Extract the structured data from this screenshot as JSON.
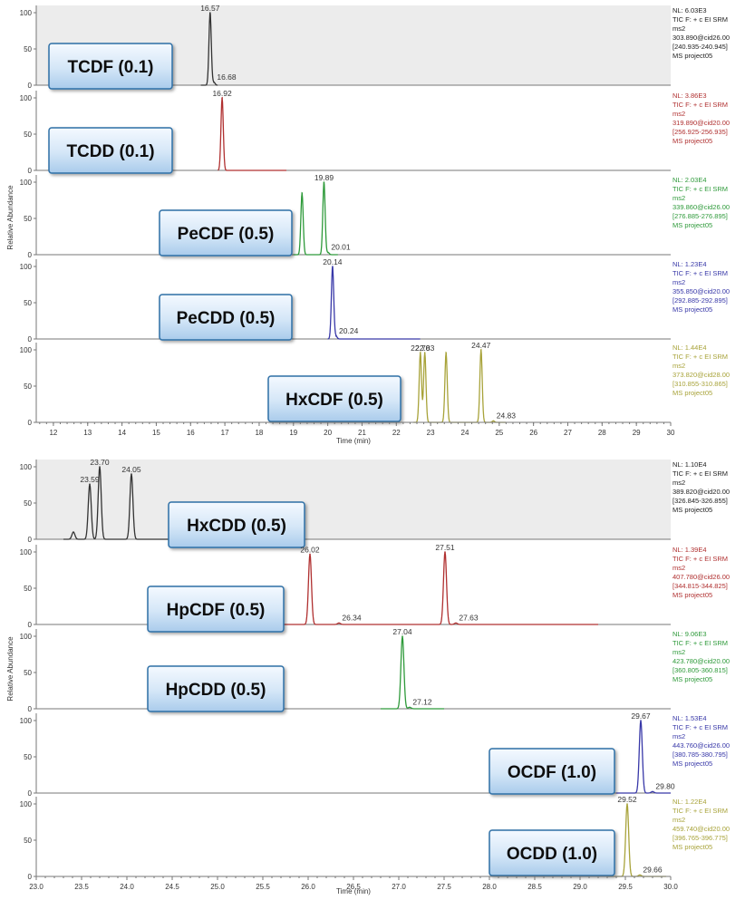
{
  "chart_data": [
    {
      "type": "line",
      "ylabel": "Relative Abundance",
      "xlabel": "Time (min)",
      "xlim": [
        11.5,
        30
      ],
      "x_ticks": [
        "12",
        "13",
        "14",
        "15",
        "16",
        "17",
        "18",
        "19",
        "20",
        "21",
        "22",
        "23",
        "24",
        "25",
        "26",
        "27",
        "28",
        "29",
        "30"
      ],
      "panels": [
        {
          "name": "TCDF (0.1)",
          "color": "#333333",
          "shaded": true,
          "y_ticks": [
            "0",
            "50",
            "100"
          ],
          "baseline": [
            16.3,
            16.8
          ],
          "info": [
            "NL: 6.03E3",
            "TIC F: + c EI SRM",
            "ms2",
            "303.890@cid26.00",
            "[240.935-240.945]",
            "MS project05"
          ],
          "peaks": [
            {
              "rt": 16.57,
              "height": 100,
              "label": "16.57"
            },
            {
              "rt": 16.68,
              "height": 4,
              "label": "16.68"
            }
          ]
        },
        {
          "name": "TCDD (0.1)",
          "color": "#b03030",
          "shaded": false,
          "y_ticks": [
            "0",
            "50",
            "100"
          ],
          "baseline": [
            16.8,
            18.8
          ],
          "info": [
            "NL: 3.86E3",
            "TIC F: + c EI SRM",
            "ms2",
            "319.890@cid20.00",
            "[256.925-256.935]",
            "MS project05"
          ],
          "peaks": [
            {
              "rt": 16.92,
              "height": 100,
              "label": "16.92"
            }
          ]
        },
        {
          "name": "PeCDF (0.5)",
          "color": "#2e9a3a",
          "shaded": false,
          "y_ticks": [
            "0",
            "50",
            "100"
          ],
          "baseline": [
            19.0,
            20.3
          ],
          "info": [
            "NL: 2.03E4",
            "TIC F: + c EI SRM",
            "ms2",
            "339.860@cid26.00",
            "[276.885-276.895]",
            "MS project05"
          ],
          "peaks": [
            {
              "rt": 19.25,
              "height": 85,
              "label": ""
            },
            {
              "rt": 19.89,
              "height": 100,
              "label": "19.89"
            },
            {
              "rt": 20.01,
              "height": 3,
              "label": "20.01"
            }
          ]
        },
        {
          "name": "PeCDD (0.5)",
          "color": "#3838a8",
          "shaded": false,
          "y_ticks": [
            "0",
            "50",
            "100"
          ],
          "baseline": [
            20.0,
            22.7
          ],
          "info": [
            "NL: 1.23E4",
            "TIC F: + c EI SRM",
            "ms2",
            "355.850@cid20.00",
            "[292.885-292.895]",
            "MS project05"
          ],
          "peaks": [
            {
              "rt": 20.14,
              "height": 100,
              "label": "20.14"
            },
            {
              "rt": 20.24,
              "height": 4,
              "label": "20.24"
            }
          ]
        },
        {
          "name": "HxCDF (0.5)",
          "color": "#a8a33a",
          "shaded": false,
          "y_ticks": [
            "0",
            "50",
            "100"
          ],
          "baseline": [
            22.5,
            25.2
          ],
          "info": [
            "NL: 1.44E4",
            "TIC F: + c EI SRM",
            "ms2",
            "373.820@cid28.00",
            "[310.855-310.865]",
            "MS project05"
          ],
          "peaks": [
            {
              "rt": 22.7,
              "height": 96,
              "label": "22.70"
            },
            {
              "rt": 22.83,
              "height": 96,
              "label": "22.83"
            },
            {
              "rt": 23.45,
              "height": 96,
              "label": ""
            },
            {
              "rt": 24.47,
              "height": 100,
              "label": "24.47"
            },
            {
              "rt": 24.83,
              "height": 2,
              "label": "24.83"
            }
          ]
        }
      ]
    },
    {
      "type": "line",
      "ylabel": "Relative Abundance",
      "xlabel": "Time (min)",
      "xlim": [
        23,
        30
      ],
      "x_ticks": [
        "23.0",
        "23.5",
        "24.0",
        "24.5",
        "25.0",
        "25.5",
        "26.0",
        "26.5",
        "27.0",
        "27.5",
        "28.0",
        "28.5",
        "29.0",
        "29.5",
        "30.0"
      ],
      "panels": [
        {
          "name": "HxCDD (0.5)",
          "color": "#333333",
          "shaded": true,
          "y_ticks": [
            "0",
            "50",
            "100"
          ],
          "baseline": [
            23.3,
            24.6
          ],
          "info": [
            "NL: 1.10E4",
            "TIC F: + c EI SRM",
            "ms2",
            "389.820@cid20.00",
            "[326.845-326.855]",
            "MS project05"
          ],
          "peaks": [
            {
              "rt": 23.41,
              "height": 10,
              "label": ""
            },
            {
              "rt": 23.59,
              "height": 76,
              "label": "23.59"
            },
            {
              "rt": 23.7,
              "height": 100,
              "label": "23.70"
            },
            {
              "rt": 24.05,
              "height": 90,
              "label": "24.05"
            }
          ]
        },
        {
          "name": "HpCDF (0.5)",
          "color": "#b03030",
          "shaded": false,
          "y_ticks": [
            "0",
            "50",
            "100"
          ],
          "baseline": [
            25.7,
            29.2
          ],
          "info": [
            "NL: 1.39E4",
            "TIC F: + c EI SRM",
            "ms2",
            "407.780@cid26.00",
            "[344.815-344.825]",
            "MS project05"
          ],
          "peaks": [
            {
              "rt": 26.02,
              "height": 97,
              "label": "26.02"
            },
            {
              "rt": 26.34,
              "height": 2,
              "label": "26.34"
            },
            {
              "rt": 27.51,
              "height": 100,
              "label": "27.51"
            },
            {
              "rt": 27.63,
              "height": 2,
              "label": "27.63"
            }
          ]
        },
        {
          "name": "HpCDD (0.5)",
          "color": "#2e9a3a",
          "shaded": false,
          "y_ticks": [
            "0",
            "50",
            "100"
          ],
          "baseline": [
            26.8,
            27.5
          ],
          "info": [
            "NL: 9.06E3",
            "TIC F: + c EI SRM",
            "ms2",
            "423.780@cid20.00",
            "[360.805-360.815]",
            "MS project05"
          ],
          "peaks": [
            {
              "rt": 27.04,
              "height": 100,
              "label": "27.04"
            },
            {
              "rt": 27.12,
              "height": 2,
              "label": "27.12"
            }
          ]
        },
        {
          "name": "OCDF (1.0)",
          "color": "#3838a8",
          "shaded": false,
          "y_ticks": [
            "0",
            "50",
            "100"
          ],
          "baseline": [
            29.4,
            30.0
          ],
          "info": [
            "NL: 1.53E4",
            "TIC F: + c EI SRM",
            "ms2",
            "443.760@cid26.00",
            "[380.785-380.795]",
            "MS project05"
          ],
          "peaks": [
            {
              "rt": 29.67,
              "height": 100,
              "label": "29.67"
            },
            {
              "rt": 29.8,
              "height": 2,
              "label": "29.80"
            }
          ]
        },
        {
          "name": "OCDD (1.0)",
          "color": "#a8a33a",
          "shaded": false,
          "y_ticks": [
            "0",
            "50",
            "100"
          ],
          "baseline": [
            29.3,
            29.95
          ],
          "info": [
            "NL: 1.22E4",
            "TIC F: + c EI SRM",
            "ms2",
            "459.740@cid20.00",
            "[396.765-396.775]",
            "MS project05"
          ],
          "peaks": [
            {
              "rt": 29.52,
              "height": 100,
              "label": "29.52"
            },
            {
              "rt": 29.66,
              "height": 2,
              "label": "29.66"
            }
          ]
        }
      ]
    }
  ]
}
